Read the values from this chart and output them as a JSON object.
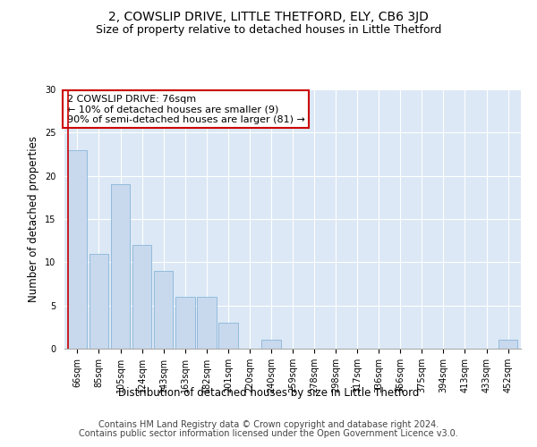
{
  "title": "2, COWSLIP DRIVE, LITTLE THETFORD, ELY, CB6 3JD",
  "subtitle": "Size of property relative to detached houses in Little Thetford",
  "xlabel": "Distribution of detached houses by size in Little Thetford",
  "ylabel": "Number of detached properties",
  "categories": [
    "66sqm",
    "85sqm",
    "105sqm",
    "124sqm",
    "143sqm",
    "163sqm",
    "182sqm",
    "201sqm",
    "220sqm",
    "240sqm",
    "259sqm",
    "278sqm",
    "298sqm",
    "317sqm",
    "336sqm",
    "356sqm",
    "375sqm",
    "394sqm",
    "413sqm",
    "433sqm",
    "452sqm"
  ],
  "values": [
    23,
    11,
    19,
    12,
    9,
    6,
    6,
    3,
    0,
    1,
    0,
    0,
    0,
    0,
    0,
    0,
    0,
    0,
    0,
    0,
    1
  ],
  "bar_color": "#c8d9ee",
  "bar_edge_color": "#7aadd4",
  "annotation_box_text": "2 COWSLIP DRIVE: 76sqm\n← 10% of detached houses are smaller (9)\n90% of semi-detached houses are larger (81) →",
  "annotation_box_color": "#ffffff",
  "annotation_box_edge_color": "#cc0000",
  "vline_color": "#cc0000",
  "ylim": [
    0,
    30
  ],
  "yticks": [
    0,
    5,
    10,
    15,
    20,
    25,
    30
  ],
  "footer_line1": "Contains HM Land Registry data © Crown copyright and database right 2024.",
  "footer_line2": "Contains public sector information licensed under the Open Government Licence v3.0.",
  "plot_background": "#dce8f5",
  "title_fontsize": 10,
  "subtitle_fontsize": 9,
  "axis_label_fontsize": 8.5,
  "tick_fontsize": 7,
  "footer_fontsize": 7,
  "annotation_fontsize": 8
}
